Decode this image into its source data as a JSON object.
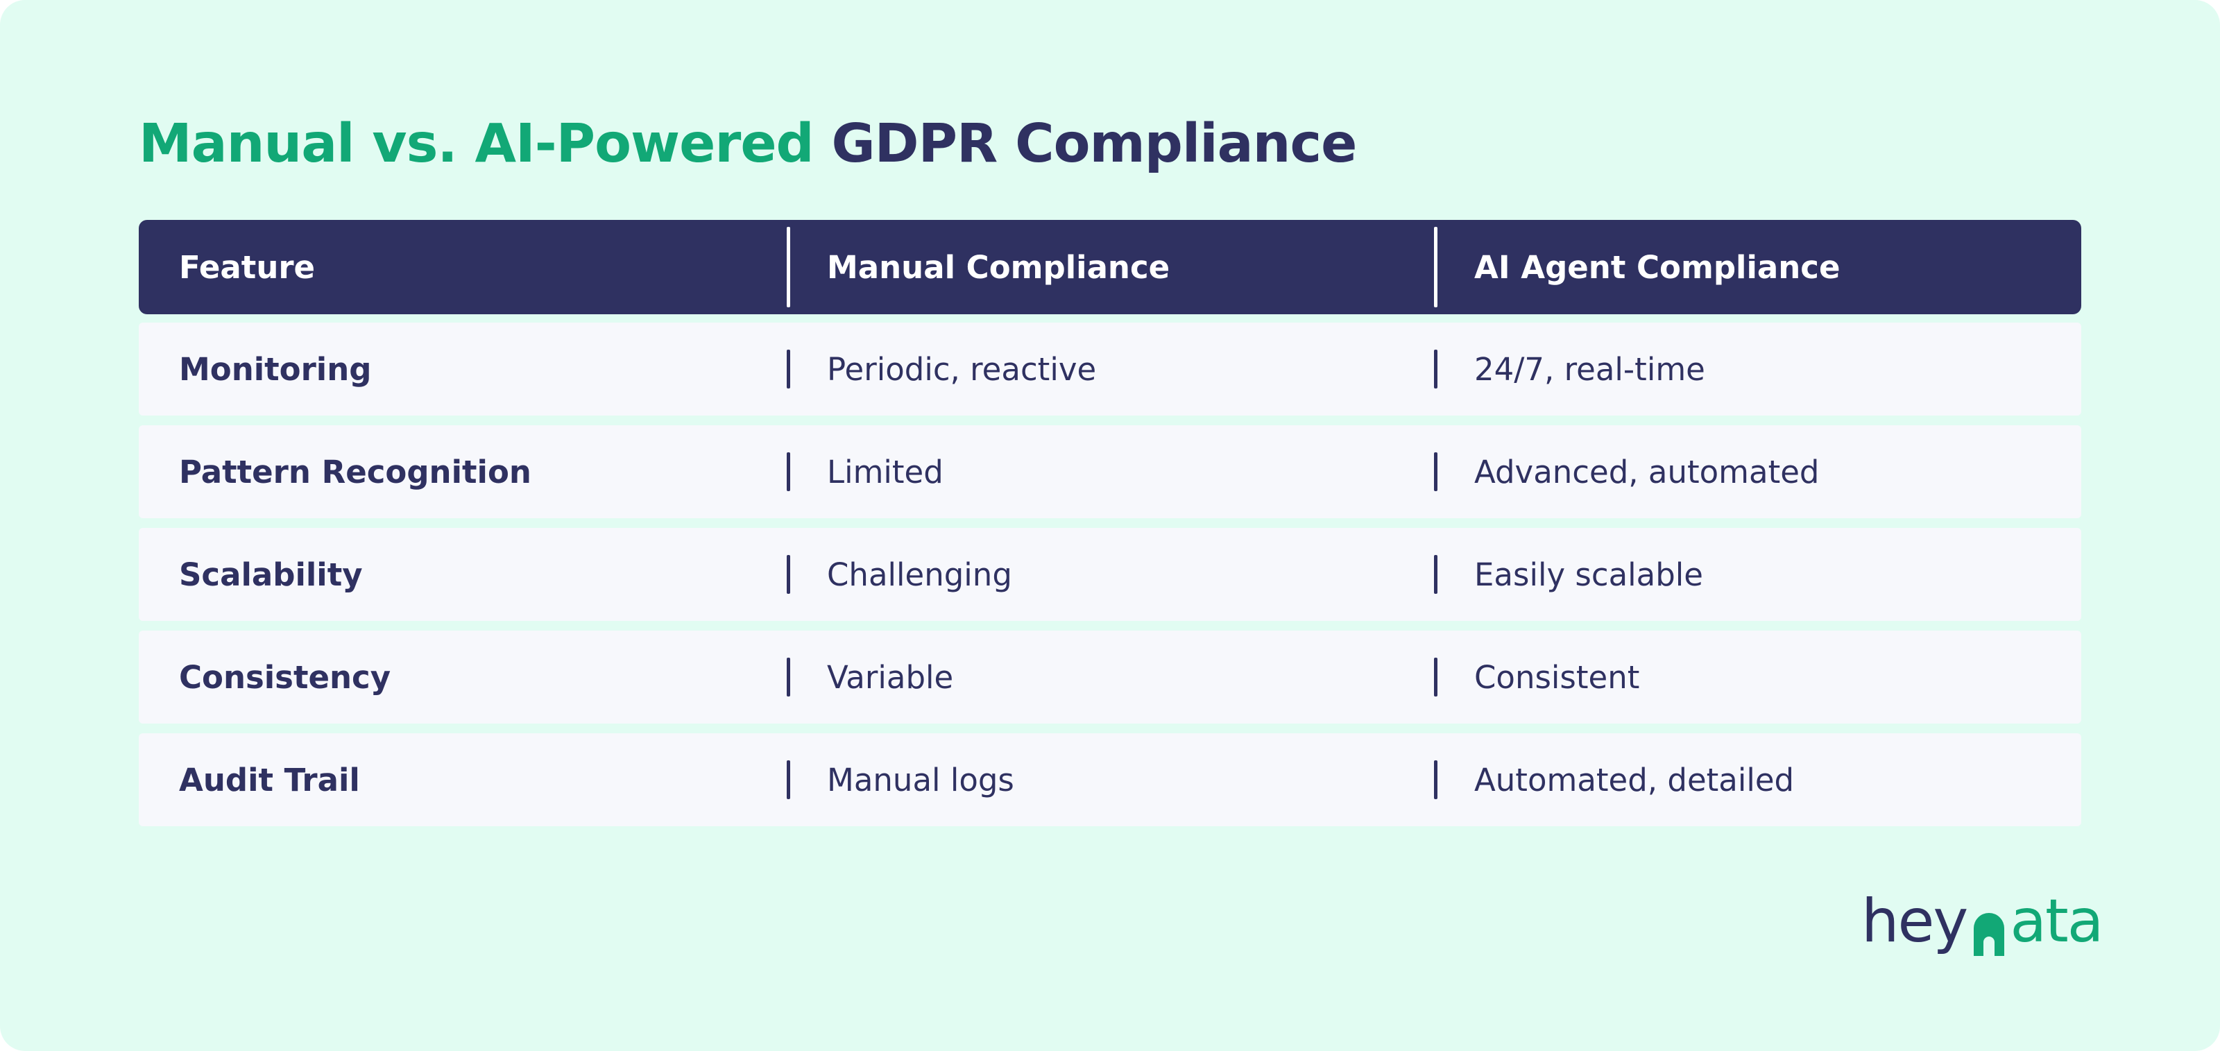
{
  "title": {
    "part1": "Manual vs. AI-Powered",
    "part2": "GDPR Compliance"
  },
  "colors": {
    "background": "#e1fcf2",
    "accent_green": "#12a876",
    "navy": "#2f3161",
    "row_background": "#f7f8fc"
  },
  "table": {
    "headers": [
      "Feature",
      "Manual Compliance",
      "AI Agent Compliance"
    ],
    "rows": [
      {
        "feature": "Monitoring",
        "manual": "Periodic, reactive",
        "ai": "24/7, real-time"
      },
      {
        "feature": "Pattern Recognition",
        "manual": "Limited",
        "ai": "Advanced, automated"
      },
      {
        "feature": "Scalability",
        "manual": "Challenging",
        "ai": "Easily scalable"
      },
      {
        "feature": "Consistency",
        "manual": "Variable",
        "ai": "Consistent"
      },
      {
        "feature": "Audit Trail",
        "manual": "Manual logs",
        "ai": "Automated, detailed"
      }
    ]
  },
  "logo": {
    "text_left": "hey",
    "mark_icon": "heydata-logo-mark-icon",
    "text_right": "ata"
  }
}
